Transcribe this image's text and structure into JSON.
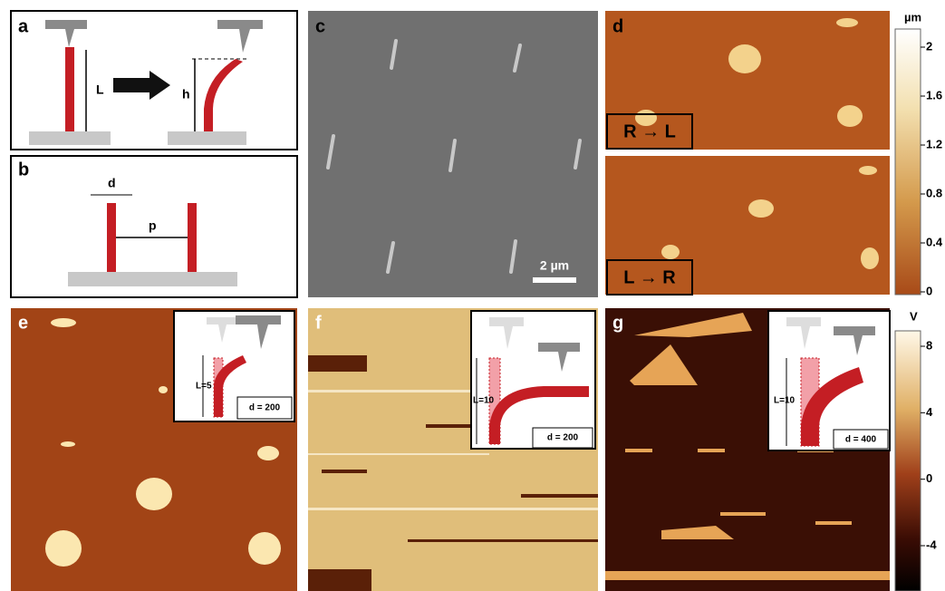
{
  "panels": {
    "a": {
      "label": "a",
      "length": "L",
      "height": "h"
    },
    "b": {
      "label": "b",
      "diameter": "d",
      "pitch": "p"
    },
    "c": {
      "label": "c",
      "scale_bar": "2 µm"
    },
    "d": {
      "label": "d",
      "scan_top": "R → L",
      "scan_bottom": "L → R",
      "colorbar": {
        "unit": "µm",
        "ticks": [
          2,
          1.6,
          1.2,
          0.8,
          0.4,
          0
        ]
      }
    },
    "e": {
      "label": "e",
      "inset_length": "L=5",
      "inset_diameter": "d = 200"
    },
    "f": {
      "label": "f",
      "inset_length": "L=10",
      "inset_diameter": "d = 200"
    },
    "g": {
      "label": "g",
      "inset_length": "L=10",
      "inset_diameter": "d = 400",
      "colorbar": {
        "unit": "V",
        "ticks": [
          8,
          4,
          0,
          -4
        ]
      }
    }
  }
}
